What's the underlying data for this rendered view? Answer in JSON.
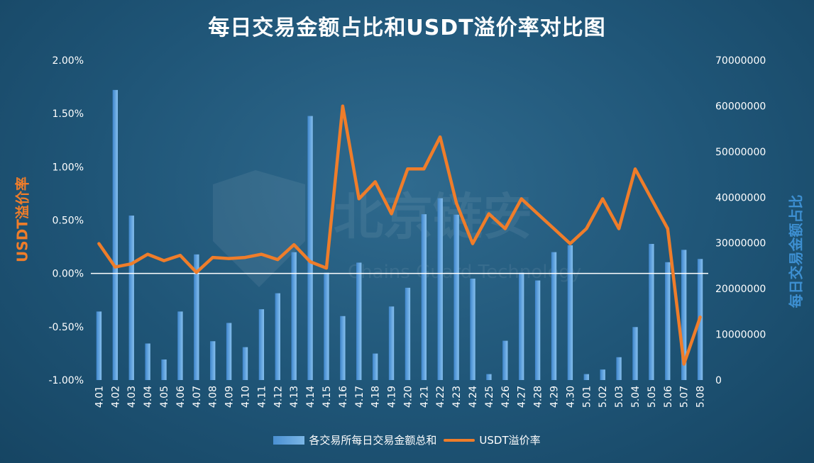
{
  "title": "每日交易金额占比和USDT溢价率对比图",
  "y_left_label": "USDT溢价率",
  "y_right_label": "每日交易金额占比",
  "watermark": {
    "name": "北京链安",
    "sub": "Chains Guard Technology"
  },
  "legend": {
    "bar": "各交易所每日交易金额总和",
    "line": "USDT溢价率"
  },
  "colors": {
    "bar": "#4a90d2",
    "line": "#ef7d2a",
    "zero_line": "#ffffff"
  },
  "chart_data": {
    "type": "bar+line",
    "categories": [
      "4.01",
      "4.02",
      "4.03",
      "4.04",
      "4.05",
      "4.06",
      "4.07",
      "4.08",
      "4.09",
      "4.10",
      "4.11",
      "4.12",
      "4.13",
      "4.14",
      "4.15",
      "4.16",
      "4.17",
      "4.18",
      "4.19",
      "4.20",
      "4.21",
      "4.22",
      "4.23",
      "4.24",
      "4.25",
      "4.26",
      "4.27",
      "4.28",
      "4.29",
      "4.30",
      "5.01",
      "5.02",
      "5.03",
      "5.04",
      "5.05",
      "5.06",
      "5.07",
      "5.08"
    ],
    "left_axis": {
      "label": "USDT溢价率",
      "ylim": [
        -1.0,
        2.0
      ],
      "ticks": [
        "2.00%",
        "1.50%",
        "1.00%",
        "0.50%",
        "0.00%",
        "-0.50%",
        "-1.00%"
      ]
    },
    "right_axis": {
      "label": "每日交易金额占比",
      "ylim": [
        0,
        70000000
      ],
      "ticks": [
        "70000000",
        "60000000",
        "50000000",
        "40000000",
        "30000000",
        "20000000",
        "10000000",
        "0"
      ]
    },
    "series": [
      {
        "name": "各交易所每日交易金额总和",
        "type": "bar",
        "axis": "right",
        "values": [
          15000000,
          63500000,
          36000000,
          8000000,
          4500000,
          15000000,
          27500000,
          8500000,
          12500000,
          7200000,
          15500000,
          19000000,
          28000000,
          57800000,
          23500000,
          14000000,
          25700000,
          5800000,
          16100000,
          20200000,
          36300000,
          39800000,
          36200000,
          22200000,
          1300000,
          8600000,
          23500000,
          21800000,
          28000000,
          29500000,
          1300000,
          2300000,
          5000000,
          11600000,
          29800000,
          25800000,
          28500000,
          26500000
        ]
      },
      {
        "name": "USDT溢价率",
        "type": "line",
        "axis": "left",
        "values": [
          0.28,
          0.06,
          0.09,
          0.18,
          0.12,
          0.17,
          0.01,
          0.15,
          0.14,
          0.15,
          0.18,
          0.13,
          0.27,
          0.11,
          0.05,
          1.57,
          0.7,
          0.86,
          0.56,
          0.98,
          0.98,
          1.28,
          0.66,
          0.28,
          0.56,
          0.42,
          0.7,
          0.56,
          0.42,
          0.28,
          0.42,
          0.7,
          0.42,
          0.98,
          0.7,
          0.42,
          -0.85,
          -0.41
        ]
      }
    ]
  }
}
